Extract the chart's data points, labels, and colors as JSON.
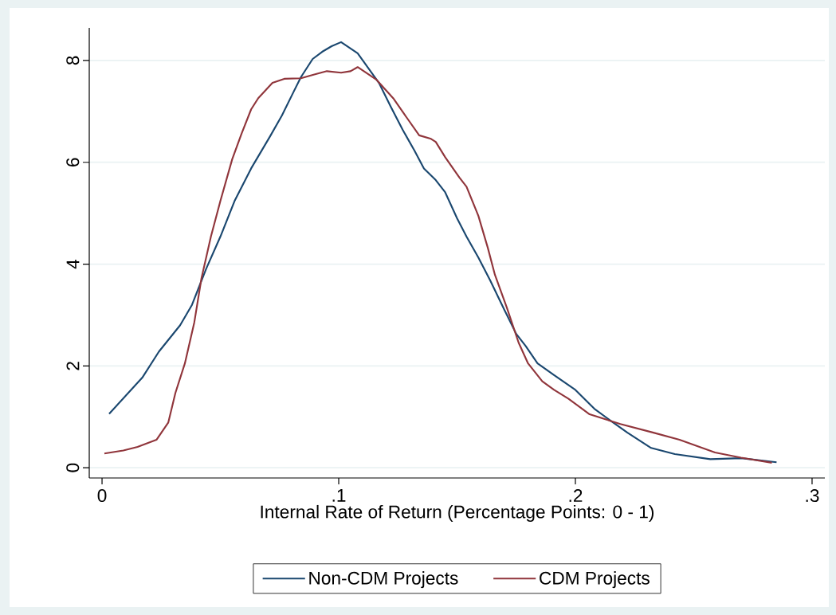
{
  "chart_data": {
    "type": "line",
    "xlabel": "Internal Rate of Return (Percentage Points: 0 - 1)",
    "xlim": [
      -0.0054,
      0.3054
    ],
    "ylim": [
      -0.2,
      8.64
    ],
    "xticks": [
      0,
      {
        "value": 0.1,
        "label": ".1"
      },
      {
        "value": 0.2,
        "label": ".2"
      },
      {
        "value": 0.3,
        "label": ".3"
      }
    ],
    "yticks": [
      0,
      2,
      4,
      6,
      8
    ],
    "grid": "y",
    "legend": "bottom",
    "marker": "none",
    "line_style": "solid",
    "series": [
      {
        "name": "Non-CDM Projects",
        "color": "#1a476f",
        "x": [
          0.003,
          0.017,
          0.024,
          0.033,
          0.038,
          0.044,
          0.05,
          0.056,
          0.063,
          0.071,
          0.076,
          0.081,
          0.084,
          0.089,
          0.093,
          0.097,
          0.101,
          0.108,
          0.117,
          0.122,
          0.127,
          0.132,
          0.136,
          0.141,
          0.145,
          0.15,
          0.154,
          0.159,
          0.164,
          0.17,
          0.175,
          0.179,
          0.184,
          0.191,
          0.2,
          0.208,
          0.215,
          0.222,
          0.232,
          0.242,
          0.257,
          0.27,
          0.285
        ],
        "values": [
          1.06,
          1.77,
          2.28,
          2.8,
          3.2,
          3.91,
          4.54,
          5.24,
          5.88,
          6.51,
          6.92,
          7.39,
          7.67,
          8.03,
          8.17,
          8.28,
          8.36,
          8.14,
          7.56,
          7.09,
          6.64,
          6.23,
          5.88,
          5.65,
          5.41,
          4.9,
          4.54,
          4.13,
          3.68,
          3.1,
          2.63,
          2.39,
          2.05,
          1.82,
          1.53,
          1.16,
          0.92,
          0.69,
          0.39,
          0.27,
          0.17,
          0.19,
          0.11
        ]
      },
      {
        "name": "CDM Projects",
        "color": "#90353b",
        "x": [
          0.001,
          0.009,
          0.015,
          0.023,
          0.028,
          0.031,
          0.035,
          0.039,
          0.042,
          0.046,
          0.05,
          0.055,
          0.059,
          0.063,
          0.066,
          0.072,
          0.077,
          0.084,
          0.09,
          0.095,
          0.101,
          0.105,
          0.108,
          0.116,
          0.123,
          0.129,
          0.134,
          0.139,
          0.141,
          0.145,
          0.151,
          0.154,
          0.159,
          0.163,
          0.166,
          0.171,
          0.176,
          0.18,
          0.186,
          0.191,
          0.197,
          0.206,
          0.219,
          0.233,
          0.244,
          0.259,
          0.27,
          0.283
        ],
        "values": [
          0.28,
          0.34,
          0.41,
          0.55,
          0.89,
          1.47,
          2.05,
          2.86,
          3.72,
          4.54,
          5.24,
          6.06,
          6.57,
          7.04,
          7.26,
          7.56,
          7.64,
          7.65,
          7.73,
          7.79,
          7.76,
          7.79,
          7.87,
          7.62,
          7.26,
          6.86,
          6.53,
          6.46,
          6.4,
          6.1,
          5.7,
          5.52,
          4.95,
          4.32,
          3.79,
          3.15,
          2.46,
          2.05,
          1.7,
          1.53,
          1.36,
          1.05,
          0.86,
          0.69,
          0.55,
          0.3,
          0.2,
          0.1
        ]
      }
    ]
  }
}
